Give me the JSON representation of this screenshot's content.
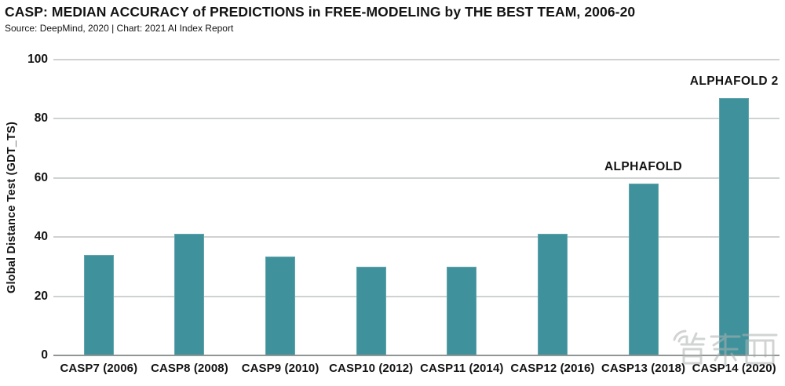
{
  "header": {
    "title": "CASP: MEDIAN ACCURACY of PREDICTIONS in FREE-MODELING by THE BEST TEAM, 2006-20",
    "subtitle": "Source: DeepMind, 2020 | Chart: 2021 AI Index Report"
  },
  "chart_data": {
    "type": "bar",
    "title": "CASP: MEDIAN ACCURACY of PREDICTIONS in FREE-MODELING by THE BEST TEAM, 2006-20",
    "categories": [
      "CASP7 (2006)",
      "CASP8 (2008)",
      "CASP9 (2010)",
      "CASP10 (2012)",
      "CASP11 (2014)",
      "CASP12 (2016)",
      "CASP13 (2018)",
      "CASP14 (2020)"
    ],
    "values": [
      34,
      41,
      33.5,
      30,
      30,
      41,
      58,
      87
    ],
    "xlabel": "",
    "ylabel": "Global Distance Test (GDT_TS)",
    "ylim": [
      0,
      100
    ],
    "yticks": [
      0,
      20,
      40,
      60,
      80,
      100
    ],
    "grid": true,
    "legend": "none",
    "bar_color": "#3F929B",
    "gridline_color": "#cfd2d2",
    "baseline_color": "#909595",
    "annotations": [
      {
        "text": "ALPHAFOLD",
        "bar_index": 6
      },
      {
        "text": "ALPHAFOLD 2",
        "bar_index": 7
      }
    ]
  },
  "watermark": {
    "text": "智东西"
  }
}
